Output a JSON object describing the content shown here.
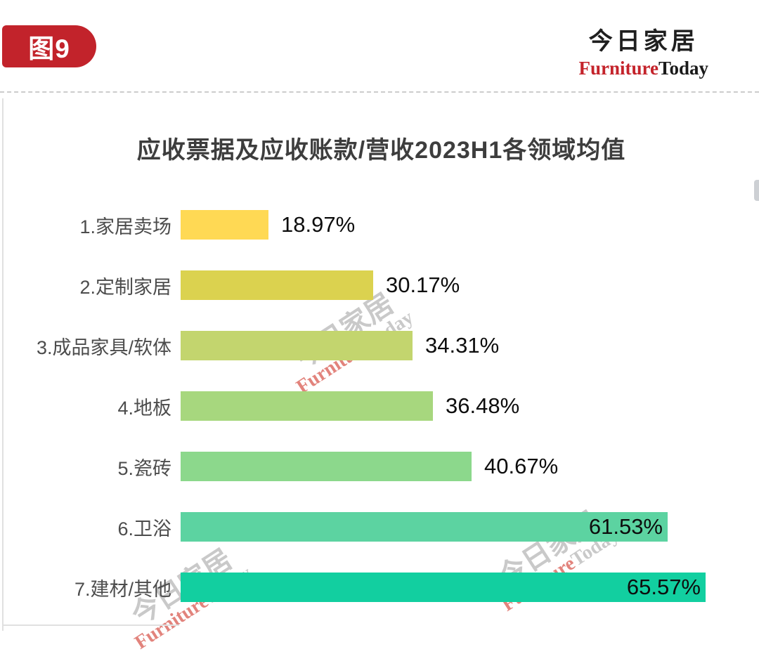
{
  "figure_tag": "图9",
  "logo": {
    "cn": "今日家居",
    "en_red": "Furniture",
    "en_black": "Today"
  },
  "watermark": {
    "cn": "今日家居",
    "en_red": "Furniture",
    "en_gray": "Today"
  },
  "colors": {
    "badge_red": "#c2232b",
    "logo_red": "#c4232b",
    "title_text": "#3d3d3d",
    "category_text": "#4c4c4c",
    "value_text": "#0d0d0d"
  },
  "chart_data": {
    "type": "bar",
    "orientation": "horizontal",
    "title": "应收票据及应收账款/营收2023H1各领域均值",
    "categories": [
      "1.家居卖场",
      "2.定制家居",
      "3.成品家具/软体",
      "4.地板",
      "5.瓷砖",
      "6.卫浴",
      "7.建材/其他"
    ],
    "values": [
      18.97,
      30.17,
      34.31,
      36.48,
      40.67,
      61.53,
      65.57
    ],
    "value_labels": [
      "18.97%",
      "30.17%",
      "34.31%",
      "36.48%",
      "40.67%",
      "61.53%",
      "65.57%"
    ],
    "bar_colors": [
      "#FFD954",
      "#DBD24F",
      "#C3D56E",
      "#A7D77E",
      "#8CD88C",
      "#5CD3A1",
      "#12CFA0"
    ],
    "xlim": [
      9.6,
      66.2
    ],
    "xlabel": "",
    "ylabel": "",
    "axis_visible": false,
    "grid": false,
    "legend": false
  }
}
